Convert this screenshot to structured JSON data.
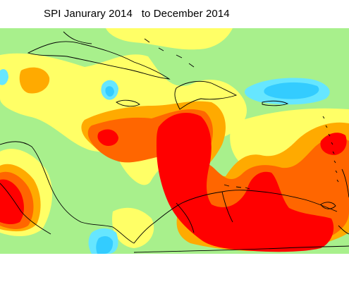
{
  "map": {
    "title": "SPI Janurary 2014   to December 2014",
    "colors": {
      "very_dry": "#ff0000",
      "dry": "#ff6600",
      "moderately_dry": "#ffaa00",
      "near_normal_dry": "#ffff66",
      "near_normal": "#a8f08c",
      "moderately_wet": "#66e6ff",
      "very_wet": "#33ccff",
      "coastline": "#000000"
    }
  }
}
